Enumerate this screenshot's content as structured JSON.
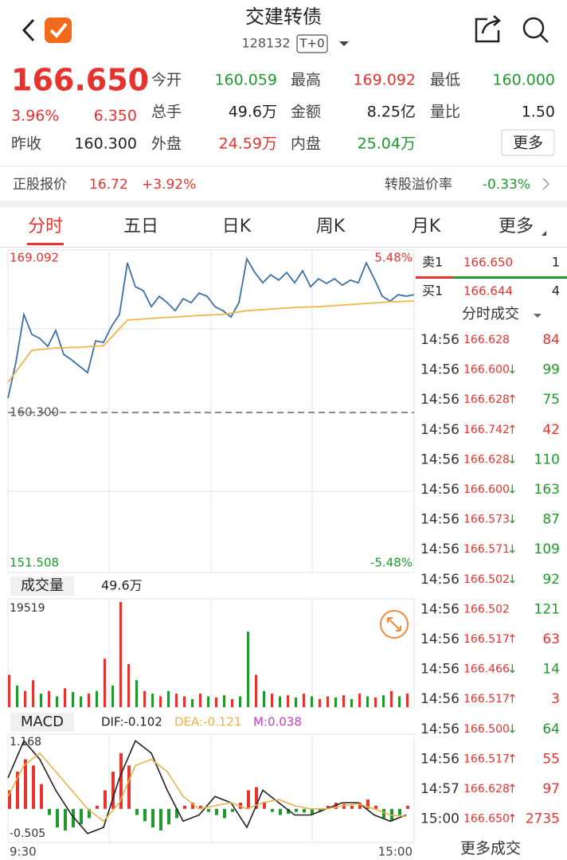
{
  "header": {
    "title": "交建转债",
    "code": "128132",
    "badge": "T+0"
  },
  "quote": {
    "price": "166.650",
    "pct": "3.96%",
    "change": "6.350",
    "prev_close_label": "昨收",
    "prev_close": "160.300",
    "cells": [
      {
        "label": "今开",
        "value": "160.059",
        "color": "#1e9b2c"
      },
      {
        "label": "最高",
        "value": "169.092",
        "color": "#e8322e"
      },
      {
        "label": "最低",
        "value": "160.000",
        "color": "#1e9b2c"
      },
      {
        "label": "总手",
        "value": "49.6万",
        "color": "#222222"
      },
      {
        "label": "金额",
        "value": "8.25亿",
        "color": "#222222"
      },
      {
        "label": "量比",
        "value": "1.50",
        "color": "#222222"
      },
      {
        "label": "外盘",
        "value": "24.59万",
        "color": "#e8322e"
      },
      {
        "label": "内盘",
        "value": "25.04万",
        "color": "#1e9b2c"
      }
    ],
    "more": "更多"
  },
  "stock": {
    "label": "正股报价",
    "price": "16.72",
    "pct": "+3.92%",
    "premium_label": "转股溢价率",
    "premium": "-0.33%"
  },
  "tabs": [
    "分时",
    "五日",
    "日K",
    "周K",
    "月K",
    "更多"
  ],
  "order_book": {
    "ask": {
      "label": "卖1",
      "price": "166.650",
      "qty": "1"
    },
    "bid": {
      "label": "买1",
      "price": "166.644",
      "qty": "4"
    }
  },
  "trades_title": "分时成交",
  "trades": [
    {
      "time": "14:56",
      "price": "166.628",
      "qty": "84",
      "color": "#e8322e"
    },
    {
      "time": "14:56",
      "price": "166.600",
      "arrow": "↓",
      "qty": "99",
      "color": "#1e9b2c"
    },
    {
      "time": "14:56",
      "price": "166.628",
      "arrow": "↑",
      "qty": "75",
      "color": "#1e9b2c"
    },
    {
      "time": "14:56",
      "price": "166.742",
      "arrow": "↑",
      "qty": "42",
      "color": "#e8322e"
    },
    {
      "time": "14:56",
      "price": "166.628",
      "arrow": "↓",
      "qty": "110",
      "color": "#1e9b2c"
    },
    {
      "time": "14:56",
      "price": "166.600",
      "arrow": "↓",
      "qty": "163",
      "color": "#1e9b2c"
    },
    {
      "time": "14:56",
      "price": "166.573",
      "arrow": "↓",
      "qty": "87",
      "color": "#1e9b2c"
    },
    {
      "time": "14:56",
      "price": "166.571",
      "arrow": "↓",
      "qty": "109",
      "color": "#1e9b2c"
    },
    {
      "time": "14:56",
      "price": "166.502",
      "arrow": "↓",
      "qty": "92",
      "color": "#1e9b2c"
    },
    {
      "time": "14:56",
      "price": "166.502",
      "qty": "121",
      "color": "#1e9b2c"
    },
    {
      "time": "14:56",
      "price": "166.517",
      "arrow": "↑",
      "qty": "63",
      "color": "#e8322e"
    },
    {
      "time": "14:56",
      "price": "166.466",
      "arrow": "↓",
      "qty": "14",
      "color": "#1e9b2c"
    },
    {
      "time": "14:56",
      "price": "166.517",
      "arrow": "↑",
      "qty": "3",
      "color": "#e8322e"
    },
    {
      "time": "14:56",
      "price": "166.500",
      "arrow": "↓",
      "qty": "64",
      "color": "#1e9b2c"
    },
    {
      "time": "14:56",
      "price": "166.517",
      "arrow": "↑",
      "qty": "55",
      "color": "#e8322e"
    },
    {
      "time": "14:57",
      "price": "166.628",
      "arrow": "↑",
      "qty": "97",
      "color": "#e8322e"
    },
    {
      "time": "15:00",
      "price": "166.650",
      "arrow": "↑",
      "qty": "2735",
      "color": "#e8322e"
    }
  ],
  "more_trades": "更多成交",
  "chart_data": [
    {
      "type": "line",
      "ylim": [
        151.508,
        169.092
      ],
      "yticks": [
        {
          "value": 160.3,
          "label": "160.300"
        }
      ],
      "pct_labels": [
        "5.48%",
        "-5.48%"
      ],
      "series": [
        {
          "color": "#3d6fa8",
          "values": [
            161.09,
            163.07,
            165.71,
            164.61,
            164.39,
            163.95,
            164.83,
            163.51,
            163.2,
            162.85,
            162.5,
            164.25,
            164.17,
            165.05,
            165.71,
            168.56,
            167.24,
            167.02,
            166.14,
            166.72,
            166.36,
            165.92,
            166.58,
            166.36,
            166.89,
            166.72,
            166.14,
            165.92,
            165.57,
            166.36,
            168.78,
            168.03,
            167.46,
            167.9,
            167.6,
            168.03,
            167.46,
            168.12,
            167.24,
            167.68,
            167.42,
            167.68,
            167.33,
            167.6,
            167.46,
            168.56,
            167.68,
            166.72,
            166.45,
            166.8,
            166.72,
            166.8
          ]
        },
        {
          "color": "#f0b54a",
          "values": [
            161.97,
            163.73,
            163.86,
            163.9,
            163.99,
            165.4,
            165.49,
            165.57,
            165.66,
            165.71,
            165.92,
            166.01,
            166.1,
            166.14,
            166.23,
            166.32,
            166.41,
            166.45
          ]
        }
      ]
    },
    {
      "type": "bar",
      "title": "成交量",
      "subtitle": "49.6万",
      "ylim": [
        0,
        19519
      ],
      "values": [
        6000,
        4000,
        3000,
        5000,
        2500,
        3000,
        2000,
        3500,
        2800,
        2000,
        2500,
        3000,
        9000,
        4000,
        19519,
        8000,
        5000,
        3000,
        2500,
        2000,
        3000,
        2500,
        2000,
        1500,
        2500,
        2000,
        1800,
        2200,
        1500,
        2000,
        14000,
        6000,
        3000,
        2500,
        2000,
        2200,
        1800,
        2500,
        2000,
        1500,
        2000,
        1800,
        2200,
        1500,
        2500,
        2000,
        1800,
        2200,
        3000,
        2000,
        2500
      ],
      "colors": [
        "#e8322e",
        "#1e9b2c",
        "#e8322e",
        "#e8322e",
        "#1e9b2c",
        "#e8322e",
        "#1e9b2c",
        "#e8322e",
        "#1e9b2c",
        "#1e9b2c",
        "#e8322e",
        "#1e9b2c",
        "#e8322e",
        "#1e9b2c",
        "#e8322e",
        "#e8322e",
        "#1e9b2c",
        "#e8322e",
        "#1e9b2c",
        "#e8322e",
        "#1e9b2c",
        "#e8322e",
        "#e8322e",
        "#1e9b2c",
        "#e8322e",
        "#1e9b2c",
        "#e8322e",
        "#1e9b2c",
        "#e8322e",
        "#1e9b2c",
        "#1e9b2c",
        "#e8322e",
        "#1e9b2c",
        "#e8322e",
        "#1e9b2c",
        "#e8322e",
        "#1e9b2c",
        "#e8322e",
        "#1e9b2c",
        "#e8322e",
        "#e8322e",
        "#1e9b2c",
        "#e8322e",
        "#1e9b2c",
        "#e8322e",
        "#1e9b2c",
        "#e8322e",
        "#1e9b2c",
        "#e8322e",
        "#1e9b2c",
        "#e8322e"
      ]
    },
    {
      "type": "macd",
      "title": "MACD",
      "ylim": [
        -0.505,
        1.168
      ],
      "x_labels": [
        "9:30",
        "15:00"
      ],
      "up_color": "#e8322e",
      "down_color": "#1e9b2c",
      "histogram": {
        "name": "M:0.038",
        "color": "#c43dc4",
        "values": [
          0.3,
          0.6,
          0.8,
          0.7,
          0.4,
          -0.1,
          -0.3,
          -0.35,
          -0.3,
          -0.25,
          -0.15,
          0.05,
          0.3,
          0.6,
          0.9,
          0.7,
          -0.1,
          -0.2,
          -0.3,
          -0.35,
          -0.25,
          -0.15,
          0.05,
          0.1,
          0.05,
          -0.05,
          -0.1,
          -0.15,
          -0.05,
          0.1,
          0.3,
          0.35,
          0.1,
          -0.05,
          -0.1,
          -0.08,
          -0.05,
          -0.06,
          -0.1,
          -0.05,
          0.05,
          0.1,
          0.08,
          0.05,
          0.1,
          0.15,
          0.05,
          -0.15,
          -0.2,
          -0.1,
          0.05
        ]
      },
      "series": [
        {
          "name": "DIF:-0.102",
          "color": "#222222",
          "values": [
            0.5,
            1.1,
            0.8,
            0.3,
            -0.1,
            -0.4,
            -0.3,
            0.5,
            1.1,
            0.9,
            0.3,
            -0.2,
            -0.1,
            0.2,
            0.1,
            -0.3,
            0.3,
            0.1,
            -0.1,
            -0.1,
            0.0,
            0.1,
            0.1,
            -0.1,
            -0.2,
            -0.1
          ]
        },
        {
          "name": "DEA:-0.121",
          "color": "#e8b44a",
          "values": [
            0.2,
            0.7,
            0.9,
            0.6,
            0.3,
            0.0,
            -0.2,
            0.1,
            0.7,
            0.8,
            0.6,
            0.2,
            0.0,
            0.05,
            0.1,
            0.0,
            0.1,
            0.15,
            0.05,
            0.0,
            0.0,
            0.05,
            0.08,
            0.0,
            -0.1,
            -0.12
          ]
        }
      ]
    }
  ]
}
